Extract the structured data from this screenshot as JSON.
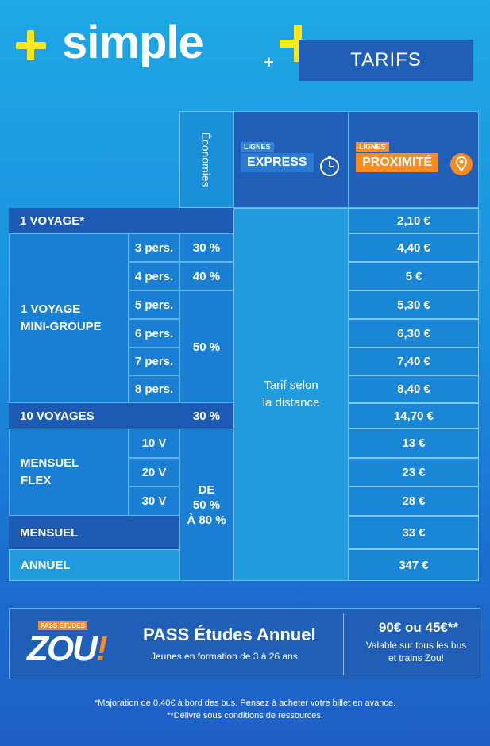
{
  "header": {
    "simple_word": "simple",
    "plus_small": "+",
    "tarifs_label": "TARIFS"
  },
  "columns": {
    "economies": "Économies",
    "express_small": "LIGNES",
    "express_big": "EXPRESS",
    "proximite_small": "LIGNES",
    "proximite_big": "PROXIMITÉ"
  },
  "rows": {
    "voyage1": {
      "label": "1 VOYAGE*",
      "price": "2,10 €"
    },
    "mini_groupe": {
      "label_line1": "1 VOYAGE",
      "label_line2": "MINI-GROUPE",
      "items": [
        {
          "pers": "3 pers.",
          "eco": "30 %",
          "price": "4,40 €"
        },
        {
          "pers": "4 pers.",
          "eco": "40 %",
          "price": "5 €"
        },
        {
          "pers": "5 pers.",
          "eco": "",
          "price": "5,30 €"
        },
        {
          "pers": "6 pers.",
          "eco": "",
          "price": "6,30 €"
        },
        {
          "pers": "7 pers.",
          "eco": "",
          "price": "7,40 €"
        },
        {
          "pers": "8 pers.",
          "eco": "",
          "price": "8,40 €"
        }
      ],
      "eco_group": "50 %"
    },
    "voyages10": {
      "label": "10 VOYAGES",
      "eco": "30 %",
      "price": "14,70 €"
    },
    "mensuel_flex": {
      "label_line1": "MENSUEL",
      "label_line2": "FLEX",
      "items": [
        {
          "v": "10 V",
          "price": "13 €"
        },
        {
          "v": "20 V",
          "price": "23 €"
        },
        {
          "v": "30 V",
          "price": "28 €"
        }
      ]
    },
    "eco_range": {
      "line1": "DE",
      "line2": "50 %",
      "line3": "À 80 %"
    },
    "mensuel": {
      "label": "MENSUEL",
      "price": "33 €"
    },
    "annuel": {
      "label": "ANNUEL",
      "price": "347 €"
    }
  },
  "express_note": {
    "line1": "Tarif selon",
    "line2": "la distance"
  },
  "pass": {
    "logo_small": "PASS ÉTUDES",
    "logo_word": "ZOU",
    "logo_excl": "!",
    "title": "PASS Études Annuel",
    "subtitle": "Jeunes en formation de 3 à 26 ans",
    "price": "90€ ou 45€**",
    "price_note_line1": "Valable sur tous les bus",
    "price_note_line2": "et trains Zou!"
  },
  "notes": {
    "line1": "*Majoration de 0.40€ à bord des bus. Pensez à acheter votre billet en avance.",
    "line2": "**Délivré sous conditions de ressources."
  },
  "colors": {
    "yellow": "#ffe71a",
    "navy": "#1f5fb8",
    "orange": "#ff8a1f"
  },
  "icons": [
    "stopwatch-icon",
    "location-pin-icon",
    "plus-icon"
  ]
}
